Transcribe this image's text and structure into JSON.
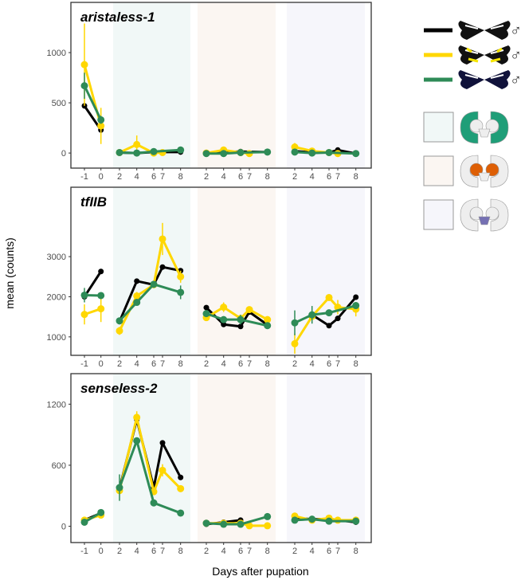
{
  "chart_data": {
    "type": "line",
    "xlabel": "Days after pupation",
    "ylabel": "mean (counts)",
    "x_groups": [
      {
        "name": "pupation",
        "days": [
          -1,
          0
        ],
        "shade": null
      },
      {
        "name": "region-1",
        "days": [
          2,
          4,
          6,
          7,
          8
        ],
        "shade": "#f1f8f7"
      },
      {
        "name": "region-2",
        "days": [
          2,
          4,
          6,
          7,
          8
        ],
        "shade": "#fbf6f2"
      },
      {
        "name": "region-3",
        "days": [
          2,
          4,
          6,
          7,
          8
        ],
        "shade": "#f6f6fb"
      }
    ],
    "series_colors": {
      "black": "#000000",
      "yellow": "#FFD700",
      "green": "#2E8B57"
    },
    "panels": [
      {
        "title": "aristaless-1",
        "ylim": [
          -150,
          1500
        ],
        "yticks": [
          0,
          500,
          1000
        ],
        "series": [
          {
            "name": "black",
            "groups": [
              [
                470,
                230
              ],
              [
                5,
                0,
                10,
                null,
                10
              ],
              [
                0,
                10,
                15,
                null,
                10
              ],
              [
                20,
                5,
                5,
                30,
                -5
              ]
            ]
          },
          {
            "name": "yellow",
            "groups": [
              [
                880,
                270
              ],
              [
                5,
                85,
                0,
                5,
                null
              ],
              [
                0,
                30,
                5,
                -5,
                null
              ],
              [
                60,
                20,
                5,
                -5,
                null
              ]
            ],
            "err": [
              [
                410,
                180
              ],
              [
                null,
                90,
                null,
                null,
                null
              ],
              [
                null,
                null,
                null,
                null,
                null
              ],
              [
                40,
                null,
                null,
                null,
                null
              ]
            ]
          },
          {
            "name": "green",
            "groups": [
              [
                670,
                330
              ],
              [
                5,
                0,
                15,
                null,
                30
              ],
              [
                -5,
                -5,
                5,
                null,
                10
              ],
              [
                10,
                0,
                5,
                null,
                -5
              ]
            ],
            "err": [
              [
                130,
                40
              ],
              [
                null,
                null,
                null,
                null,
                null
              ],
              [
                null,
                null,
                null,
                null,
                null
              ],
              [
                null,
                null,
                null,
                null,
                null
              ]
            ]
          }
        ]
      },
      {
        "title": "tfIIB",
        "ylim": [
          540,
          4730
        ],
        "yticks": [
          1000,
          2000,
          3000
        ],
        "series": [
          {
            "name": "black",
            "groups": [
              [
                2000,
                2630
              ],
              [
                1380,
                2390,
                2300,
                2740,
                2650
              ],
              [
                1730,
                1310,
                1260,
                1620,
                1300
              ],
              [
                null,
                1550,
                1280,
                1460,
                1990
              ]
            ]
          },
          {
            "name": "yellow",
            "groups": [
              [
                1560,
                1700
              ],
              [
                1150,
                2020,
                2300,
                3440,
                2500
              ],
              [
                1480,
                1740,
                1460,
                1680,
                1430
              ],
              [
                830,
                1510,
                1980,
                1740,
                1690
              ]
            ],
            "err": [
              [
                250,
                330
              ],
              [
                100,
                100,
                null,
                400,
                150
              ],
              [
                null,
                120,
                null,
                null,
                null
              ],
              [
                250,
                null,
                null,
                180,
                180
              ]
            ]
          },
          {
            "name": "green",
            "groups": [
              [
                2040,
                2030
              ],
              [
                1400,
                1860,
                2310,
                null,
                2110
              ],
              [
                1580,
                1430,
                1430,
                null,
                1280
              ],
              [
                1350,
                1550,
                1600,
                null,
                1780
              ]
            ],
            "err": [
              [
                180,
                null
              ],
              [
                null,
                null,
                null,
                null,
                170
              ],
              [
                null,
                null,
                120,
                null,
                null
              ],
              [
                310,
                220,
                null,
                null,
                null
              ]
            ]
          }
        ]
      },
      {
        "title": "senseless-2",
        "ylim": [
          -160,
          1500
        ],
        "yticks": [
          0,
          600,
          1200
        ],
        "series": [
          {
            "name": "black",
            "groups": [
              [
                60,
                130
              ],
              [
                370,
                1050,
                380,
                820,
                480
              ],
              [
                20,
                40,
                60,
                null,
                null
              ],
              [
                80,
                70,
                70,
                60,
                40
              ]
            ]
          },
          {
            "name": "yellow",
            "groups": [
              [
                60,
                110
              ],
              [
                350,
                1070,
                340,
                550,
                370
              ],
              [
                30,
                30,
                30,
                5,
                5
              ],
              [
                100,
                60,
                80,
                60,
                60
              ]
            ],
            "err": [
              [
                null,
                null
              ],
              [
                null,
                60,
                null,
                60,
                null
              ],
              [
                null,
                null,
                null,
                null,
                null
              ],
              [
                null,
                null,
                null,
                null,
                null
              ]
            ]
          },
          {
            "name": "green",
            "groups": [
              [
                40,
                135
              ],
              [
                380,
                840,
                230,
                null,
                130
              ],
              [
                30,
                20,
                20,
                null,
                95
              ],
              [
                60,
                70,
                50,
                null,
                50
              ]
            ],
            "err": [
              [
                null,
                null
              ],
              [
                130,
                null,
                null,
                null,
                null
              ],
              [
                null,
                null,
                null,
                null,
                null
              ],
              [
                null,
                null,
                null,
                null,
                null
              ]
            ]
          }
        ]
      }
    ],
    "legend": {
      "placement": "right",
      "species": [
        {
          "color": "black",
          "symbol": "♂"
        },
        {
          "color": "yellow",
          "symbol": "♂"
        },
        {
          "color": "green",
          "symbol": "♂"
        }
      ],
      "regions": [
        {
          "shade": "#f1f8f7",
          "highlight": "#1f9e78"
        },
        {
          "shade": "#fbf6f2",
          "highlight": "#de5f05"
        },
        {
          "shade": "#f6f6fb",
          "highlight": "#7570b3"
        }
      ]
    }
  }
}
